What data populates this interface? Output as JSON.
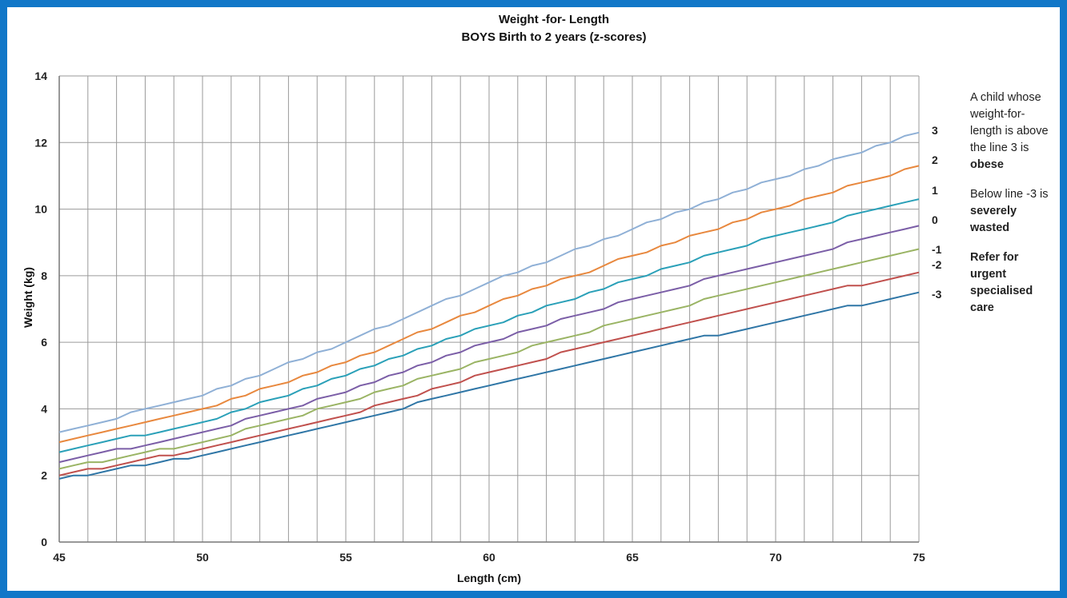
{
  "chart_data": {
    "type": "line",
    "title": "Weight -for- Length",
    "subtitle": "BOYS Birth to 2 years (z-scores)",
    "xlabel": "Length (cm)",
    "ylabel": "Weight (kg)",
    "xlim": [
      45,
      75
    ],
    "ylim": [
      0,
      14
    ],
    "x_ticks": [
      45,
      50,
      55,
      60,
      65,
      70,
      75
    ],
    "y_ticks": [
      0,
      2,
      4,
      6,
      8,
      10,
      12,
      14
    ],
    "x_gridlines_step": 1,
    "grid": true,
    "legend": "right",
    "x": [
      45,
      50,
      55,
      60,
      65,
      70,
      75
    ],
    "series": [
      {
        "name": "3",
        "color": "#8fb0d6",
        "values": [
          3.3,
          4.4,
          6.0,
          7.8,
          9.4,
          10.9,
          12.3
        ]
      },
      {
        "name": "2",
        "color": "#e8883e",
        "values": [
          3.0,
          4.0,
          5.4,
          7.1,
          8.6,
          10.0,
          11.3
        ]
      },
      {
        "name": "1",
        "color": "#2aa0b8",
        "values": [
          2.7,
          3.6,
          5.0,
          6.5,
          7.9,
          9.2,
          10.3
        ]
      },
      {
        "name": "0",
        "color": "#7b5ea7",
        "values": [
          2.4,
          3.3,
          4.5,
          6.0,
          7.3,
          8.4,
          9.5
        ]
      },
      {
        "name": "-1",
        "color": "#9ab464",
        "values": [
          2.2,
          3.0,
          4.2,
          5.5,
          6.7,
          7.8,
          8.8
        ]
      },
      {
        "name": "-2",
        "color": "#c0504d",
        "values": [
          2.0,
          2.8,
          3.8,
          5.1,
          6.2,
          7.2,
          8.1
        ]
      },
      {
        "name": "-3",
        "color": "#2f76a6",
        "values": [
          1.9,
          2.6,
          3.6,
          4.7,
          5.7,
          6.6,
          7.5
        ]
      }
    ]
  },
  "note": {
    "line1": "A child whose weight-for-length is above the line 3 is",
    "line1_bold": "obese",
    "line2": "Below line -3 is",
    "line2_bold": "severely wasted",
    "line3_bold": "Refer for urgent specialised care"
  }
}
